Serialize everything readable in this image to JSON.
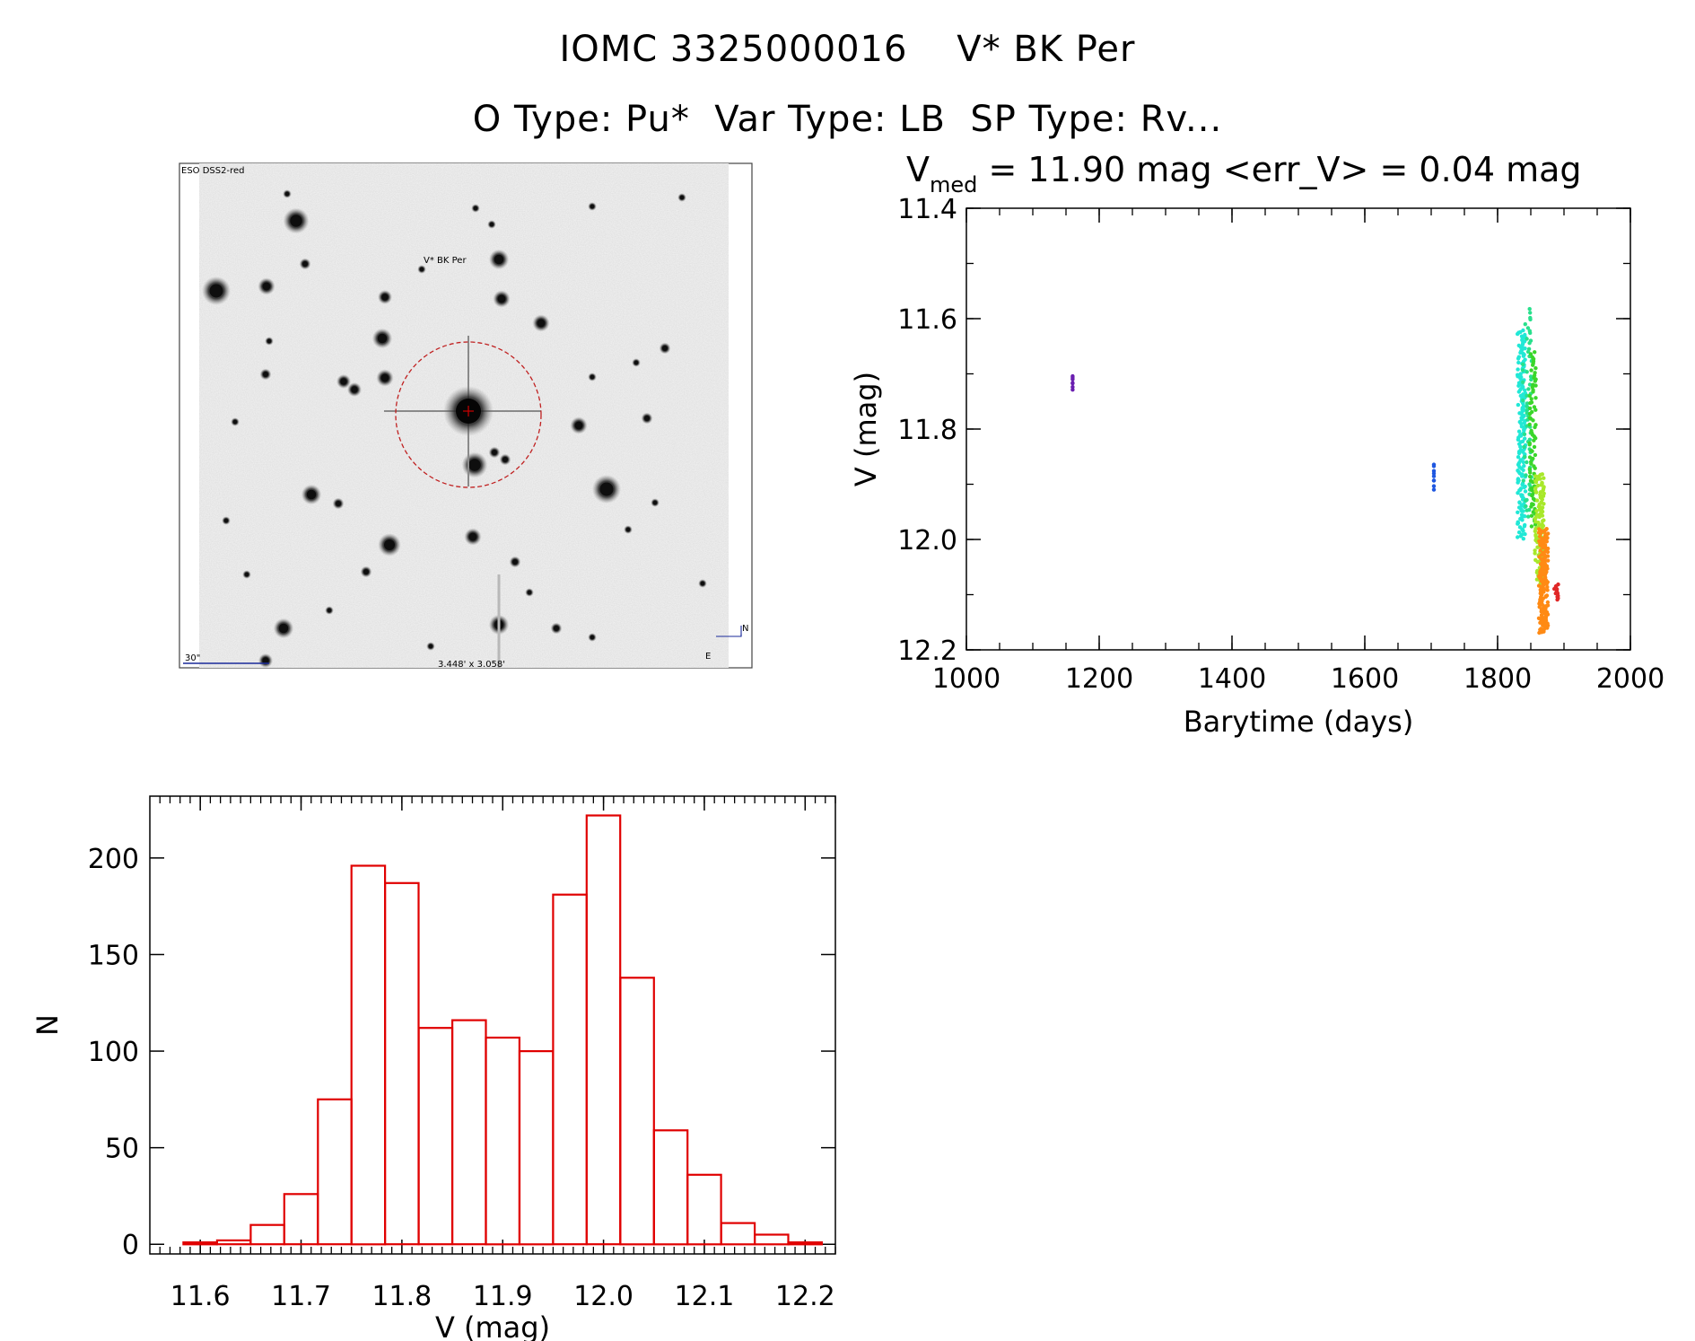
{
  "title": {
    "line1": "IOMC 3325000016    V* BK Per",
    "line2": "O Type: Pu*  Var Type: LB  SP Type: Rv..."
  },
  "finder_chart": {
    "survey_label": "ESO DSS2-red",
    "target_label": "V* BK Per",
    "scale_label": "30\"",
    "field_size_label": "3.448' x 3.058'",
    "compass_n": "N",
    "compass_e": "E",
    "colors": {
      "circle": "#c02020",
      "target_label": "#cc0000",
      "overlay_text": "#1a2a9a"
    }
  },
  "chart_data": [
    {
      "type": "scatter",
      "title_prefix": "V",
      "title_subscript": "med",
      "title_rest": " = 11.90 mag <err_V> = 0.04 mag",
      "xlabel": "Barytime (days)",
      "ylabel": "V (mag)",
      "xlim": [
        1000,
        2000
      ],
      "ylim": [
        11.4,
        12.2
      ],
      "y_inverted": true,
      "xticks": [
        1000,
        1200,
        1400,
        1600,
        1800,
        2000
      ],
      "xtick_labels": [
        "1000",
        "1200",
        "1400",
        "1600",
        "1800",
        "2000"
      ],
      "yticks": [
        11.4,
        11.6,
        11.8,
        12.0,
        12.2
      ],
      "ytick_labels": [
        "11.4",
        "11.6",
        "11.8",
        "12.0",
        "12.2"
      ],
      "grid": false,
      "clusters": [
        {
          "color": "#6a1fb0",
          "x": [
            1160,
            1160
          ],
          "y": [
            11.7,
            11.73
          ],
          "n": 7
        },
        {
          "color": "#1f57e0",
          "x": [
            1704,
            1704
          ],
          "y": [
            11.86,
            11.91
          ],
          "n": 9
        },
        {
          "color": "#21e8d6",
          "x": [
            1830,
            1842
          ],
          "y": [
            11.62,
            12.0
          ],
          "n": 170
        },
        {
          "color": "#28e08c",
          "x": [
            1838,
            1852
          ],
          "y": [
            11.58,
            11.96
          ],
          "n": 60
        },
        {
          "color": "#3ad62a",
          "x": [
            1848,
            1858
          ],
          "y": [
            11.66,
            11.98
          ],
          "n": 80
        },
        {
          "color": "#a8e82a",
          "x": [
            1856,
            1870
          ],
          "y": [
            11.88,
            12.08
          ],
          "n": 110
        },
        {
          "color": "#ff8a14",
          "x": [
            1862,
            1876
          ],
          "y": [
            11.98,
            12.17
          ],
          "n": 170
        },
        {
          "color": "#e02828",
          "x": [
            1885,
            1892
          ],
          "y": [
            12.08,
            12.11
          ],
          "n": 12
        }
      ]
    },
    {
      "type": "bar",
      "style": "histogram",
      "color": "#e00000",
      "xlabel": "V (mag)",
      "ylabel": "N",
      "xlim": [
        11.55,
        12.23
      ],
      "ylim": [
        -5,
        232
      ],
      "xticks": [
        11.6,
        11.7,
        11.8,
        11.9,
        12.0,
        12.1,
        12.2
      ],
      "xtick_labels": [
        "11.6",
        "11.7",
        "11.8",
        "11.9",
        "12.0",
        "12.1",
        "12.2"
      ],
      "yticks": [
        0,
        50,
        100,
        150,
        200
      ],
      "ytick_labels": [
        "0",
        "50",
        "100",
        "150",
        "200"
      ],
      "bin_width": 0.0333,
      "bin_starts": [
        11.5833,
        11.6167,
        11.65,
        11.6833,
        11.7167,
        11.75,
        11.7833,
        11.8167,
        11.85,
        11.8833,
        11.9167,
        11.95,
        11.9833,
        12.0167,
        12.05,
        12.0833,
        12.1167,
        12.15,
        12.1833
      ],
      "values": [
        1,
        2,
        10,
        26,
        75,
        196,
        187,
        112,
        116,
        107,
        100,
        181,
        222,
        138,
        59,
        36,
        11,
        5,
        1
      ]
    }
  ]
}
